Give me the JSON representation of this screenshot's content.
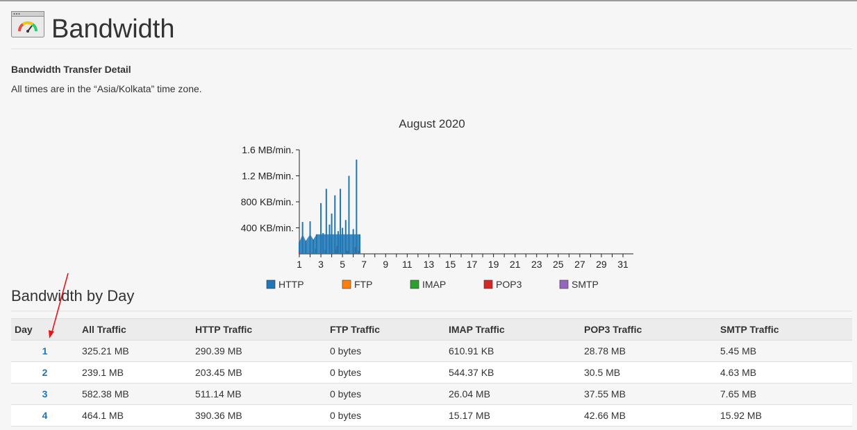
{
  "page": {
    "title": "Bandwidth"
  },
  "header_icon": "bandwidth-gauge-icon",
  "detail": {
    "heading": "Bandwidth Transfer Detail",
    "timezone_note": "All times are in the “Asia/Kolkata” time zone."
  },
  "chart_data": {
    "type": "area",
    "title": "August 2020",
    "xlabel": "",
    "ylabel": "",
    "x_ticks": [
      1,
      3,
      5,
      7,
      9,
      11,
      13,
      15,
      17,
      19,
      21,
      23,
      25,
      27,
      29,
      31
    ],
    "y_tick_labels": [
      "400 KB/min.",
      "800 KB/min.",
      "1.2 MB/min.",
      "1.6 MB/min."
    ],
    "y_tick_values": [
      0.4,
      0.8,
      1.2,
      1.6
    ],
    "xlim": [
      1,
      31
    ],
    "ylim": [
      0,
      1.6
    ],
    "y_unit": "MB/min.",
    "legend_position": "bottom",
    "series": [
      {
        "name": "HTTP",
        "color": "#1f77b4",
        "x": [
          1.0,
          1.3,
          1.6,
          2.0,
          2.3,
          2.6,
          3.0,
          3.2,
          3.5,
          3.8,
          4.0,
          4.3,
          4.6,
          4.8,
          5.0,
          5.3,
          5.6,
          6.0,
          6.3,
          6.6
        ],
        "values": [
          0.18,
          0.49,
          0.2,
          0.5,
          0.22,
          0.3,
          0.78,
          0.32,
          1.0,
          0.45,
          0.62,
          0.9,
          0.35,
          1.0,
          0.4,
          0.52,
          1.2,
          0.38,
          1.45,
          0.3
        ]
      },
      {
        "name": "FTP",
        "color": "#ff7f0e",
        "x": [],
        "values": []
      },
      {
        "name": "IMAP",
        "color": "#2ca02c",
        "x": [
          2.5,
          3.4,
          4.4,
          5.4
        ],
        "values": [
          0.08,
          0.06,
          0.07,
          0.05
        ]
      },
      {
        "name": "POP3",
        "color": "#d62728",
        "x": [
          1.0,
          2.0,
          3.0,
          4.0,
          4.5,
          5.5,
          6.2,
          6.5
        ],
        "values": [
          0.03,
          0.04,
          0.05,
          0.06,
          0.12,
          0.04,
          0.1,
          0.05
        ]
      },
      {
        "name": "SMTP",
        "color": "#9467bd",
        "x": [],
        "values": []
      }
    ]
  },
  "by_day": {
    "heading": "Bandwidth by Day",
    "columns": [
      "Day",
      "All Traffic",
      "HTTP Traffic",
      "FTP Traffic",
      "IMAP Traffic",
      "POP3 Traffic",
      "SMTP Traffic"
    ],
    "rows": [
      {
        "day": "1",
        "all": "325.21 MB",
        "http": "290.39 MB",
        "ftp": "0 bytes",
        "imap": "610.91 KB",
        "pop3": "28.78 MB",
        "smtp": "5.45 MB"
      },
      {
        "day": "2",
        "all": "239.1 MB",
        "http": "203.45 MB",
        "ftp": "0 bytes",
        "imap": "544.37 KB",
        "pop3": "30.5 MB",
        "smtp": "4.63 MB"
      },
      {
        "day": "3",
        "all": "582.38 MB",
        "http": "511.14 MB",
        "ftp": "0 bytes",
        "imap": "26.04 MB",
        "pop3": "37.55 MB",
        "smtp": "7.65 MB"
      },
      {
        "day": "4",
        "all": "464.1 MB",
        "http": "390.36 MB",
        "ftp": "0 bytes",
        "imap": "15.17 MB",
        "pop3": "42.66 MB",
        "smtp": "15.92 MB"
      }
    ]
  },
  "annotation": {
    "arrow_color": "#e8141b"
  }
}
